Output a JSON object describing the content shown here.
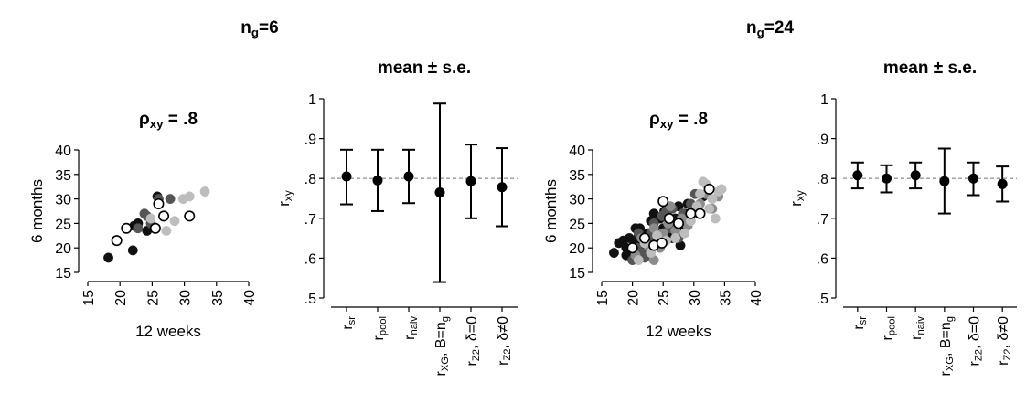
{
  "group_titles": [
    {
      "main": "n",
      "sub": "g",
      "rest": "=6"
    },
    {
      "main": "n",
      "sub": "g",
      "rest": "=24"
    }
  ],
  "colors": {
    "black": "#111111",
    "dark_gray": "#555555",
    "mid_gray": "#8c8c8c",
    "light_gray": "#bdbdbd",
    "open": "#ffffff",
    "ref_line": "#999999"
  },
  "chart_data": [
    {
      "type": "scatter",
      "title": {
        "main": "ρ",
        "sub": "xy",
        "rest": " = .8"
      },
      "xlabel": "12 weeks",
      "ylabel": "6 months",
      "xlim": [
        15,
        40
      ],
      "ylim": [
        15,
        40
      ],
      "xticks": [
        15,
        20,
        25,
        30,
        35,
        40
      ],
      "yticks": [
        15,
        20,
        25,
        30,
        35,
        40
      ],
      "series": [
        {
          "color": "#111111",
          "open": false,
          "points": [
            [
              18.2,
              18.0
            ],
            [
              22.0,
              19.5
            ],
            [
              22.2,
              24.5
            ],
            [
              22.8,
              25.0
            ],
            [
              24.2,
              23.5
            ],
            [
              25.8,
              30.5
            ]
          ]
        },
        {
          "color": "#555555",
          "open": false,
          "points": [
            [
              22.8,
              24.0
            ],
            [
              23.8,
              27.0
            ],
            [
              24.8,
              25.0
            ],
            [
              26.0,
              30.0
            ],
            [
              27.8,
              30.0
            ],
            [
              24.2,
              26.5
            ]
          ]
        },
        {
          "color": "#bdbdbd",
          "open": false,
          "points": [
            [
              24.8,
              26.0
            ],
            [
              27.2,
              23.5
            ],
            [
              28.5,
              25.5
            ],
            [
              29.8,
              30.0
            ],
            [
              30.8,
              30.5
            ],
            [
              33.2,
              31.5
            ]
          ]
        },
        {
          "color": "#ffffff",
          "open": true,
          "points": [
            [
              19.5,
              21.5
            ],
            [
              21.0,
              24.0
            ],
            [
              25.5,
              24.0
            ],
            [
              26.0,
              29.0
            ],
            [
              26.8,
              26.5
            ],
            [
              30.8,
              26.5
            ]
          ]
        }
      ]
    },
    {
      "type": "errorbar",
      "title": "mean ± s.e.",
      "ylabel": {
        "main": "r",
        "sub": "xy"
      },
      "ylim": [
        0.5,
        1.0
      ],
      "yticks": [
        0.5,
        0.6,
        0.7,
        0.8,
        0.9,
        1.0
      ],
      "ytick_labels": [
        ".5",
        ".6",
        ".7",
        ".8",
        ".9",
        "1"
      ],
      "reference_line": 0.8,
      "categories": [
        {
          "main": "r",
          "sub": "sr",
          "rest": ""
        },
        {
          "main": "r",
          "sub": "pool",
          "rest": ""
        },
        {
          "main": "r",
          "sub": "naiv",
          "rest": ""
        },
        {
          "main": "r",
          "sub": "XG",
          "rest": ", B=n",
          "sub2": "g"
        },
        {
          "main": "r",
          "sub": "Z2",
          "rest": ", δ=0"
        },
        {
          "main": "r",
          "sub": "Z2",
          "rest": ", δ≠0"
        }
      ],
      "means": [
        0.805,
        0.795,
        0.805,
        0.765,
        0.793,
        0.778
      ],
      "lower": [
        0.735,
        0.718,
        0.738,
        0.54,
        0.7,
        0.68
      ],
      "upper": [
        0.872,
        0.872,
        0.872,
        0.988,
        0.885,
        0.876
      ]
    },
    {
      "type": "scatter",
      "title": {
        "main": "ρ",
        "sub": "xy",
        "rest": " = .8"
      },
      "xlabel": "12 weeks",
      "ylabel": "6 months",
      "xlim": [
        15,
        40
      ],
      "ylim": [
        15,
        40
      ],
      "xticks": [
        15,
        20,
        25,
        30,
        35,
        40
      ],
      "yticks": [
        15,
        20,
        25,
        30,
        35,
        40
      ],
      "series": [
        {
          "color": "#111111",
          "open": false,
          "points": [
            [
              17,
              19
            ],
            [
              17.8,
              21
            ],
            [
              18.5,
              21.5
            ],
            [
              19,
              20
            ],
            [
              19.5,
              22
            ],
            [
              20,
              19.5
            ],
            [
              20.5,
              21
            ],
            [
              21,
              22.5
            ],
            [
              21.2,
              24
            ],
            [
              22,
              21
            ],
            [
              22.5,
              23
            ],
            [
              23,
              25.5
            ],
            [
              23.5,
              23
            ],
            [
              24,
              22
            ],
            [
              24.5,
              26
            ],
            [
              25,
              24
            ],
            [
              25.2,
              27.5
            ],
            [
              26,
              25
            ],
            [
              26.5,
              22
            ],
            [
              27,
              26
            ],
            [
              27.5,
              28.5
            ],
            [
              28,
              24
            ],
            [
              28.5,
              27
            ],
            [
              29,
              29
            ],
            [
              30,
              28
            ],
            [
              31.5,
              30.5
            ],
            [
              20.5,
              24
            ],
            [
              22,
              20
            ],
            [
              23.5,
              27
            ],
            [
              25.8,
              23
            ],
            [
              27.8,
              20.5
            ],
            [
              19,
              18.5
            ]
          ]
        },
        {
          "color": "#555555",
          "open": false,
          "points": [
            [
              20,
              17.5
            ],
            [
              20.8,
              20
            ],
            [
              21.5,
              19
            ],
            [
              22,
              18
            ],
            [
              22.5,
              21.5
            ],
            [
              23,
              23
            ],
            [
              23.5,
              25
            ],
            [
              24.2,
              21
            ],
            [
              24.8,
              26.5
            ],
            [
              25.5,
              27.5
            ],
            [
              26,
              24
            ],
            [
              26.5,
              28
            ],
            [
              27,
              25
            ],
            [
              27.5,
              22
            ],
            [
              28.2,
              27
            ],
            [
              29,
              26
            ],
            [
              29.5,
              29
            ],
            [
              30.2,
              31
            ],
            [
              21,
              23
            ],
            [
              22.8,
              19.5
            ]
          ]
        },
        {
          "color": "#8c8c8c",
          "open": false,
          "points": [
            [
              20.5,
              18.5
            ],
            [
              21.5,
              22
            ],
            [
              22.5,
              20.5
            ],
            [
              23.5,
              24
            ],
            [
              24.5,
              20
            ],
            [
              25,
              23
            ],
            [
              25.8,
              25
            ],
            [
              27,
              23.5
            ],
            [
              28,
              26
            ],
            [
              29,
              24.5
            ],
            [
              30,
              27
            ],
            [
              31,
              29
            ],
            [
              32,
              31
            ],
            [
              33,
              28
            ],
            [
              34,
              30.5
            ],
            [
              23.5,
              17.5
            ],
            [
              26.2,
              28.5
            ]
          ]
        },
        {
          "color": "#bdbdbd",
          "open": false,
          "points": [
            [
              21,
              17.5
            ],
            [
              22,
              21
            ],
            [
              23,
              19
            ],
            [
              24,
              22.5
            ],
            [
              25.5,
              21.5
            ],
            [
              27,
              22
            ],
            [
              28.5,
              23
            ],
            [
              29.5,
              25.5
            ],
            [
              30.5,
              28.5
            ],
            [
              31.5,
              33.5
            ],
            [
              32.5,
              28
            ],
            [
              33.5,
              26
            ],
            [
              34.5,
              32
            ],
            [
              33,
              30
            ],
            [
              31,
              31
            ],
            [
              32,
              33
            ],
            [
              34,
              31.5
            ]
          ]
        },
        {
          "color": "#ffffff",
          "open": true,
          "points": [
            [
              20,
              20
            ],
            [
              22,
              22
            ],
            [
              23.5,
              20.5
            ],
            [
              24.8,
              21
            ],
            [
              25,
              29.5
            ],
            [
              26,
              26
            ],
            [
              27.5,
              25
            ],
            [
              29.5,
              27
            ],
            [
              31,
              27
            ],
            [
              32.5,
              32
            ]
          ]
        }
      ]
    },
    {
      "type": "errorbar",
      "title": "mean ± s.e.",
      "ylabel": {
        "main": "r",
        "sub": "xy"
      },
      "ylim": [
        0.5,
        1.0
      ],
      "yticks": [
        0.5,
        0.6,
        0.7,
        0.8,
        0.9,
        1.0
      ],
      "ytick_labels": [
        ".5",
        ".6",
        ".7",
        ".8",
        ".9",
        "1"
      ],
      "reference_line": 0.8,
      "categories": [
        {
          "main": "r",
          "sub": "sr",
          "rest": ""
        },
        {
          "main": "r",
          "sub": "pool",
          "rest": ""
        },
        {
          "main": "r",
          "sub": "naiv",
          "rest": ""
        },
        {
          "main": "r",
          "sub": "XG",
          "rest": ", B=n",
          "sub2": "g"
        },
        {
          "main": "r",
          "sub": "Z2",
          "rest": ", δ=0"
        },
        {
          "main": "r",
          "sub": "Z2",
          "rest": ", δ≠0"
        }
      ],
      "means": [
        0.808,
        0.8,
        0.808,
        0.793,
        0.8,
        0.786
      ],
      "lower": [
        0.775,
        0.765,
        0.775,
        0.712,
        0.758,
        0.742
      ],
      "upper": [
        0.84,
        0.833,
        0.84,
        0.875,
        0.84,
        0.83
      ]
    }
  ]
}
